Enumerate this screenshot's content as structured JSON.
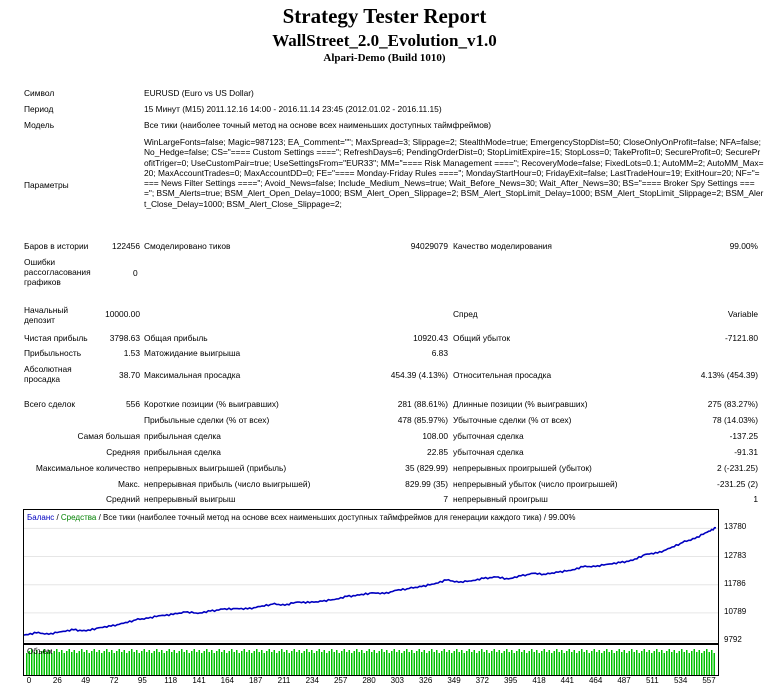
{
  "header": {
    "title": "Strategy Tester Report",
    "subtitle": "WallStreet_2.0_Evolution_v1.0",
    "server": "Alpari-Demo (Build 1010)"
  },
  "info": {
    "symbol_label": "Символ",
    "symbol_value": "EURUSD (Euro vs US Dollar)",
    "period_label": "Период",
    "period_value": "15 Минут (M15) 2011.12.16 14:00 - 2016.11.14 23:45 (2012.01.02 - 2016.11.15)",
    "model_label": "Модель",
    "model_value": "Все тики (наиболее точный метод на основе всех наименьших доступных таймфреймов)",
    "params_label": "Параметры",
    "params_value": "WinLargeFonts=false; Magic=987123; EA_Comment=\"\"; MaxSpread=3; Slippage=2; StealthMode=true; EmergencyStopDist=50; CloseOnlyOnProfit=false; NFA=false; No_Hedge=false; CS=\"==== Custom Settings ====\"; RefreshDays=6; PendingOrderDist=0; StopLimitExpire=15; StopLoss=0; TakeProfit=0; SecureProfit=0; SecureProfitTriger=0; UseCustomPair=true; UseSettingsFrom=\"EUR33\"; MM=\"==== Risk Management ====\"; RecoveryMode=false; FixedLots=0.1; AutoMM=2; AutoMM_Max=20; MaxAccountTrades=0; MaxAccountDD=0; FE=\"==== Monday-Friday Rules ====\"; MondayStartHour=0; FridayExit=false; LastTradeHour=19; ExitHour=20; NF=\"==== News Filter Settings ====\"; Avoid_News=false; Include_Medium_News=true; Wait_Before_News=30; Wait_After_News=30; BS=\"==== Broker Spy Settings ====\"; BSM_Alerts=true; BSM_Alert_Open_Delay=1000; BSM_Alert_Open_Slippage=2; BSM_Alert_StopLimit_Delay=1000; BSM_Alert_StopLimit_Slippage=2; BSM_Alert_Close_Delay=1000; BSM_Alert_Close_Slippage=2;"
  },
  "stats": {
    "bars_label": "Баров в истории",
    "bars_value": "122456",
    "ticks_label": "Смоделировано тиков",
    "ticks_value": "94029079",
    "quality_label": "Качество моделирования",
    "quality_value": "99.00%",
    "errors_label": "Ошибки рассогласования графиков",
    "errors_value": "0",
    "deposit_label": "Начальный депозит",
    "deposit_value": "10000.00",
    "spread_label": "Спред",
    "spread_value": "Variable",
    "netprofit_label": "Чистая прибыль",
    "netprofit_value": "3798.63",
    "grossprofit_label": "Общая прибыль",
    "grossprofit_value": "10920.43",
    "grossloss_label": "Общий убыток",
    "grossloss_value": "-7121.80",
    "pf_label": "Прибыльность",
    "pf_value": "1.53",
    "expected_label": "Матожидание выигрыша",
    "expected_value": "6.83",
    "absdd_label": "Абсолютная просадка",
    "absdd_value": "38.70",
    "maxdd_label": "Максимальная просадка",
    "maxdd_value": "454.39 (4.13%)",
    "reldd_label": "Относительная просадка",
    "reldd_value": "4.13% (454.39)",
    "trades_label": "Всего сделок",
    "trades_value": "556",
    "short_label": "Короткие позиции (% выигравших)",
    "short_value": "281 (88.61%)",
    "long_label": "Длинные позиции (% выигравших)",
    "long_value": "275 (83.27%)",
    "profit_trades_label": "Прибыльные сделки (% от всех)",
    "profit_trades_value": "478 (85.97%)",
    "loss_trades_label": "Убыточные сделки (% от всех)",
    "loss_trades_value": "78 (14.03%)",
    "largest_label": "Самая большая",
    "largest_profit_label": "прибыльная сделка",
    "largest_profit_value": "108.00",
    "largest_loss_label": "убыточная сделка",
    "largest_loss_value": "-137.25",
    "average_label": "Средняя",
    "average_profit_label": "прибыльная сделка",
    "average_profit_value": "22.85",
    "average_loss_label": "убыточная сделка",
    "average_loss_value": "-91.31",
    "maxcount_label": "Максимальное количество",
    "maxcons_wins_label": "непрерывных выигрышей (прибыль)",
    "maxcons_wins_value": "35 (829.99)",
    "maxcons_losses_label": "непрерывных проигрышей (убыток)",
    "maxcons_losses_value": "2 (-231.25)",
    "max_label": "Макс.",
    "maxcons_profit_label": "непрерывная прибыль (число выигрышей)",
    "maxcons_profit_value": "829.99 (35)",
    "maxcons_loss_label": "непрерывный убыток (число проигрышей)",
    "maxcons_loss_value": "-231.25 (2)",
    "avg_label": "Средний",
    "avgcons_wins_label": "непрерывный выигрыш",
    "avgcons_wins_value": "7",
    "avgcons_losses_label": "непрерывный проигрыш",
    "avgcons_losses_value": "1"
  },
  "colors": {
    "balance": "#0000c0",
    "equity": "#00b000",
    "volume": "#00c000"
  },
  "chart_data": {
    "type": "line",
    "legend": {
      "balance": "Баланс",
      "sep1": " / ",
      "equity": "Средства",
      "rest": " / Все тики (наиболее точный метод на основе всех наименьших доступных таймфреймов для генерации каждого тика) / 99.00%"
    },
    "volume_label": "Объем",
    "y_ticks": [
      "13780",
      "12783",
      "11786",
      "10789",
      "9792"
    ],
    "ylim": [
      9792,
      14077
    ],
    "x_ticks": [
      "0",
      "26",
      "49",
      "72",
      "95",
      "118",
      "141",
      "164",
      "187",
      "211",
      "234",
      "257",
      "280",
      "303",
      "326",
      "349",
      "372",
      "395",
      "418",
      "441",
      "464",
      "487",
      "511",
      "534",
      "557"
    ],
    "xlim": [
      0,
      557
    ],
    "series": [
      {
        "name": "Баланс",
        "x": [
          0,
          10,
          20,
          30,
          40,
          50,
          60,
          70,
          80,
          90,
          100,
          110,
          120,
          130,
          140,
          150,
          160,
          170,
          180,
          190,
          200,
          210,
          220,
          230,
          240,
          250,
          260,
          270,
          280,
          290,
          300,
          310,
          320,
          330,
          340,
          350,
          360,
          370,
          380,
          390,
          400,
          410,
          420,
          430,
          440,
          450,
          460,
          470,
          480,
          490,
          500,
          510,
          520,
          530,
          540,
          550,
          557
        ],
        "values": [
          10000,
          10080,
          10030,
          10120,
          10190,
          10150,
          10260,
          10320,
          10420,
          10540,
          10600,
          10690,
          10730,
          10820,
          10770,
          10850,
          10920,
          10940,
          10930,
          11010,
          11100,
          11060,
          11170,
          11150,
          11200,
          11260,
          11370,
          11420,
          11500,
          11470,
          11590,
          11650,
          11720,
          11810,
          11950,
          11870,
          11920,
          12010,
          12060,
          11990,
          12100,
          12190,
          12150,
          12230,
          12290,
          12420,
          12430,
          12510,
          12570,
          12650,
          12860,
          12910,
          13080,
          13280,
          13420,
          13650,
          13800
        ]
      }
    ]
  }
}
